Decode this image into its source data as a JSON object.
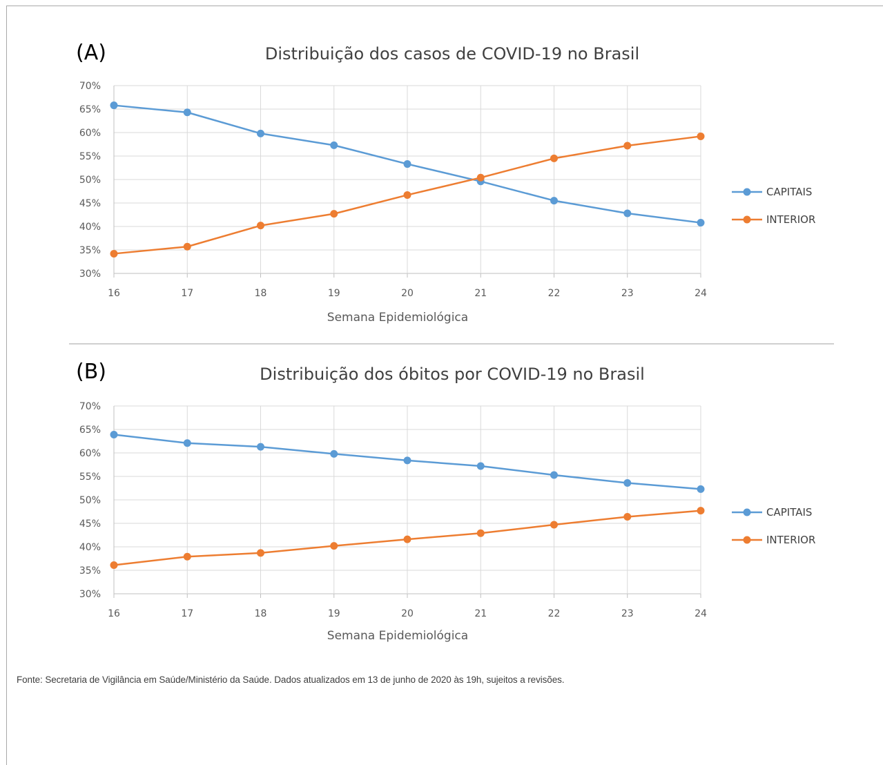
{
  "source_note": "Fonte: Secretaria de Vigilância em Saúde/Ministério da Saúde. Dados atualizados em 13 de junho de 2020 às 19h, sujeitos a revisões.",
  "colors": {
    "capitais": "#5b9bd5",
    "interior": "#ed7d31"
  },
  "chart_data": [
    {
      "type": "line",
      "panel": "(A)",
      "title": "Distribuição dos casos de COVID-19 no Brasil",
      "xlabel": "Semana Epidemiológica",
      "ylabel": "",
      "categories": [
        "16",
        "17",
        "18",
        "19",
        "20",
        "21",
        "22",
        "23",
        "24"
      ],
      "ylim": [
        30,
        70
      ],
      "yticks": [
        "30%",
        "35%",
        "40%",
        "45%",
        "50%",
        "55%",
        "60%",
        "65%",
        "70%"
      ],
      "grid": true,
      "legend_position": "right",
      "series": [
        {
          "name": "CAPITAIS",
          "values": [
            65.8,
            64.3,
            59.8,
            57.3,
            53.3,
            49.6,
            45.5,
            42.8,
            40.8
          ]
        },
        {
          "name": "INTERIOR",
          "values": [
            34.2,
            35.7,
            40.2,
            42.7,
            46.7,
            50.4,
            54.5,
            57.2,
            59.2
          ]
        }
      ]
    },
    {
      "type": "line",
      "panel": "(B)",
      "title": "Distribuição dos óbitos por COVID-19 no Brasil",
      "xlabel": "Semana Epidemiológica",
      "ylabel": "",
      "categories": [
        "16",
        "17",
        "18",
        "19",
        "20",
        "21",
        "22",
        "23",
        "24"
      ],
      "ylim": [
        30,
        70
      ],
      "yticks": [
        "30%",
        "35%",
        "40%",
        "45%",
        "50%",
        "55%",
        "60%",
        "65%",
        "70%"
      ],
      "grid": true,
      "legend_position": "right",
      "series": [
        {
          "name": "CAPITAIS",
          "values": [
            63.9,
            62.1,
            61.3,
            59.8,
            58.4,
            57.2,
            55.3,
            53.6,
            52.3
          ]
        },
        {
          "name": "INTERIOR",
          "values": [
            36.1,
            37.9,
            38.7,
            40.2,
            41.6,
            42.9,
            44.7,
            46.4,
            47.7
          ]
        }
      ]
    }
  ]
}
